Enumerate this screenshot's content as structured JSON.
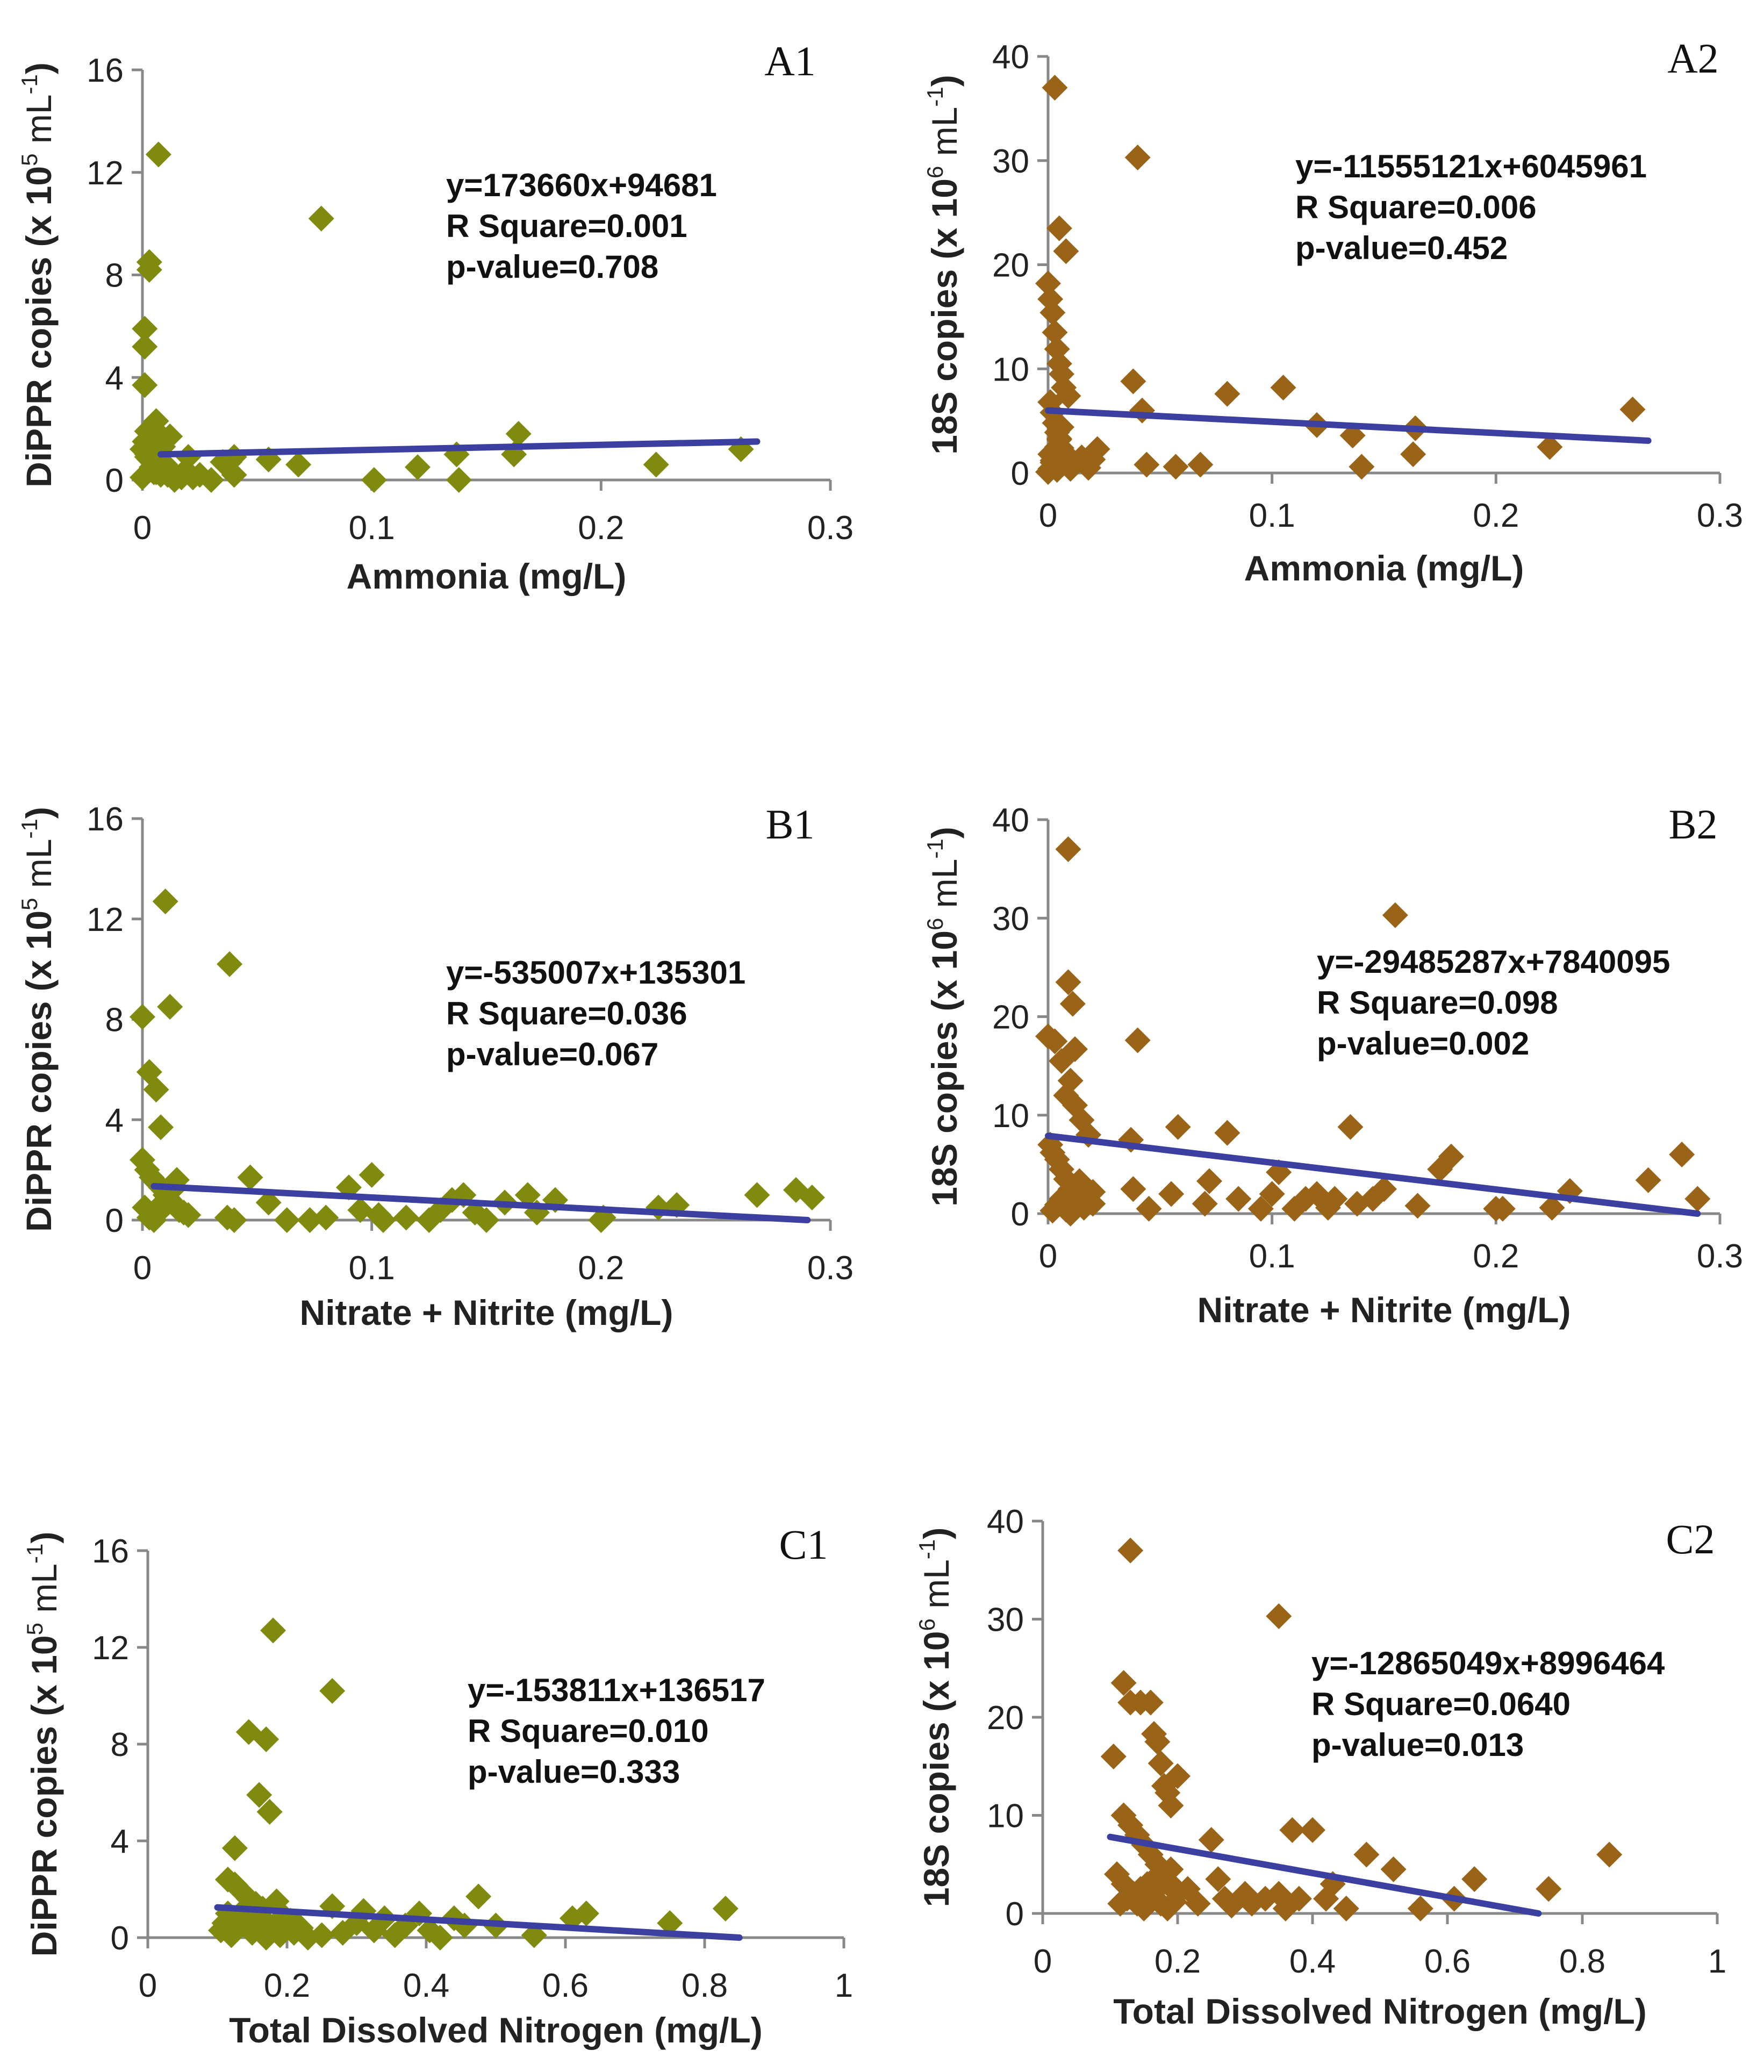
{
  "colors": {
    "series1": "#7f8a0e",
    "series2": "#9a6418",
    "trend": "#3a3fa0"
  },
  "chart_data": [
    {
      "type": "scatter",
      "panel": "A1",
      "xlabel": "Ammonia (mg/L)",
      "ylabel_parts": [
        "DiPPR copies (x 10",
        "5",
        " mL",
        "-1",
        ")"
      ],
      "xlim": [
        0,
        0.3
      ],
      "ylim": [
        0,
        16
      ],
      "xticks": [
        "0",
        "0.1",
        "0.2",
        "0.3"
      ],
      "yticks": [
        "0",
        "4",
        "8",
        "12",
        "16"
      ],
      "stats": [
        "y=173660x+94681",
        "R Square=0.001",
        "p-value=0.708"
      ],
      "trend": {
        "x": [
          0.008,
          0.268
        ],
        "y": [
          1.0,
          1.5
        ]
      },
      "x": [
        0.007,
        0.003,
        0.003,
        0.001,
        0.001,
        0.001,
        0.002,
        0.078,
        0.005,
        0.001,
        0.002,
        0.003,
        0.004,
        0.006,
        0.008,
        0.01,
        0.012,
        0.0,
        0.002,
        0.004,
        0.006,
        0.009,
        0.011,
        0.014,
        0.017,
        0.02,
        0.025,
        0.03,
        0.035,
        0.038,
        0.04,
        0.04,
        0.055,
        0.068,
        0.101,
        0.12,
        0.137,
        0.138,
        0.162,
        0.164,
        0.224,
        0.261,
        0.0,
        0.003,
        0.005,
        0.008,
        0.015,
        0.018,
        0.022
      ],
      "y": [
        12.7,
        8.5,
        8.2,
        5.9,
        5.2,
        3.7,
        1.9,
        10.2,
        2.0,
        1.5,
        1.0,
        0.8,
        0.5,
        0.3,
        0.2,
        0.6,
        1.7,
        0.1,
        0.9,
        0.4,
        2.3,
        1.3,
        0.2,
        0.0,
        0.1,
        0.9,
        0.2,
        0.0,
        0.7,
        0.7,
        0.2,
        0.9,
        0.8,
        0.6,
        0.0,
        0.5,
        1.0,
        0.0,
        1.0,
        1.8,
        0.6,
        1.2,
        1.2,
        1.5,
        0.3,
        0.4,
        0.1,
        0.3,
        0.1
      ]
    },
    {
      "type": "scatter",
      "panel": "A2",
      "xlabel": "Ammonia (mg/L)",
      "ylabel_parts": [
        "18S copies (x 10",
        "6",
        " mL",
        "-1",
        ")"
      ],
      "xlim": [
        0,
        0.3
      ],
      "ylim": [
        0,
        40
      ],
      "xticks": [
        "0",
        "0.1",
        "0.2",
        "0.3"
      ],
      "yticks": [
        "0",
        "10",
        "20",
        "30",
        "40"
      ],
      "stats": [
        "y=-11555121x+6045961",
        "R Square=0.006",
        "p-value=0.452"
      ],
      "trend": {
        "x": [
          0.0,
          0.268
        ],
        "y": [
          6.0,
          3.1
        ]
      },
      "x": [
        0.003,
        0.005,
        0.008,
        0.009,
        0.0,
        0.001,
        0.002,
        0.003,
        0.004,
        0.005,
        0.006,
        0.007,
        0.001,
        0.002,
        0.003,
        0.004,
        0.005,
        0.006,
        0.001,
        0.002,
        0.003,
        0.004,
        0.0,
        0.001,
        0.002,
        0.003,
        0.004,
        0.005,
        0.006,
        0.007,
        0.008,
        0.009,
        0.01,
        0.012,
        0.015,
        0.018,
        0.02,
        0.022,
        0.04,
        0.038,
        0.042,
        0.044,
        0.057,
        0.068,
        0.08,
        0.105,
        0.12,
        0.136,
        0.14,
        0.163,
        0.164,
        0.224,
        0.261
      ],
      "y": [
        37.0,
        23.5,
        21.3,
        7.4,
        18.2,
        16.7,
        15.4,
        13.5,
        11.9,
        10.5,
        9.5,
        8.2,
        6.8,
        5.8,
        4.8,
        3.9,
        3.2,
        2.4,
        1.8,
        1.2,
        0.7,
        0.3,
        0.1,
        0.4,
        1.0,
        1.6,
        2.5,
        3.3,
        4.4,
        1.1,
        1.8,
        0.7,
        0.4,
        0.9,
        1.5,
        0.5,
        1.3,
        2.3,
        30.3,
        8.8,
        6.0,
        0.8,
        0.6,
        0.8,
        7.6,
        8.2,
        4.6,
        3.6,
        0.6,
        1.8,
        4.3,
        2.5,
        6.1
      ]
    },
    {
      "type": "scatter",
      "panel": "B1",
      "xlabel": "Nitrate + Nitrite (mg/L)",
      "ylabel_parts": [
        "DiPPR copies (x 10",
        "5",
        " mL",
        "-1",
        ")"
      ],
      "xlim": [
        0,
        0.3
      ],
      "ylim": [
        0,
        16
      ],
      "xticks": [
        "0",
        "0.1",
        "0.2",
        "0.3"
      ],
      "yticks": [
        "0",
        "4",
        "8",
        "12",
        "16"
      ],
      "stats": [
        "y=-535007x+135301",
        "R Square=0.036",
        "p-value=0.067"
      ],
      "trend": {
        "x": [
          0.005,
          0.29
        ],
        "y": [
          1.35,
          0.0
        ]
      },
      "x": [
        0.01,
        0.012,
        0.038,
        0.0,
        0.003,
        0.006,
        0.008,
        0.0,
        0.002,
        0.004,
        0.006,
        0.008,
        0.01,
        0.012,
        0.014,
        0.016,
        0.018,
        0.02,
        0.001,
        0.003,
        0.005,
        0.007,
        0.009,
        0.011,
        0.013,
        0.015,
        0.037,
        0.04,
        0.047,
        0.055,
        0.063,
        0.073,
        0.08,
        0.09,
        0.095,
        0.1,
        0.103,
        0.105,
        0.115,
        0.125,
        0.13,
        0.135,
        0.14,
        0.145,
        0.15,
        0.158,
        0.168,
        0.172,
        0.18,
        0.2,
        0.201,
        0.225,
        0.233,
        0.268,
        0.285,
        0.292
      ],
      "y": [
        12.7,
        8.5,
        10.2,
        8.1,
        5.9,
        5.2,
        3.7,
        2.4,
        2.0,
        1.7,
        1.5,
        1.3,
        1.0,
        0.8,
        0.6,
        0.4,
        0.3,
        0.2,
        0.5,
        0.1,
        0.0,
        0.3,
        0.7,
        0.9,
        1.2,
        1.6,
        0.1,
        0.0,
        1.7,
        0.7,
        0.0,
        0.0,
        0.1,
        1.3,
        0.4,
        1.8,
        0.2,
        0.0,
        0.1,
        0.0,
        0.4,
        0.8,
        1.0,
        0.3,
        0.0,
        0.7,
        1.0,
        0.3,
        0.8,
        0.0,
        0.1,
        0.5,
        0.6,
        1.0,
        1.2,
        0.9
      ]
    },
    {
      "type": "scatter",
      "panel": "B2",
      "xlabel": "Nitrate + Nitrite (mg/L)",
      "ylabel_parts": [
        "18S copies (x 10",
        "6",
        " mL",
        "-1",
        ")"
      ],
      "xlim": [
        0,
        0.3
      ],
      "ylim": [
        0,
        40
      ],
      "xticks": [
        "0",
        "0.1",
        "0.2",
        "0.3"
      ],
      "yticks": [
        "0",
        "10",
        "20",
        "30",
        "40"
      ],
      "stats": [
        "y=-29485287x+7840095",
        "R Square=0.098",
        "p-value=0.002"
      ],
      "trend": {
        "x": [
          0.0,
          0.29
        ],
        "y": [
          7.9,
          0.0
        ]
      },
      "x": [
        0.009,
        0.009,
        0.011,
        0.012,
        0.0,
        0.003,
        0.006,
        0.008,
        0.01,
        0.012,
        0.015,
        0.018,
        0.001,
        0.002,
        0.004,
        0.006,
        0.008,
        0.01,
        0.012,
        0.014,
        0.016,
        0.018,
        0.02,
        0.002,
        0.004,
        0.006,
        0.008,
        0.01,
        0.012,
        0.014,
        0.02,
        0.04,
        0.037,
        0.038,
        0.045,
        0.055,
        0.058,
        0.07,
        0.072,
        0.08,
        0.085,
        0.095,
        0.1,
        0.103,
        0.11,
        0.115,
        0.12,
        0.125,
        0.128,
        0.135,
        0.138,
        0.145,
        0.15,
        0.155,
        0.165,
        0.175,
        0.18,
        0.2,
        0.203,
        0.225,
        0.233,
        0.268,
        0.283,
        0.29
      ],
      "y": [
        37.0,
        23.5,
        21.3,
        16.7,
        18.0,
        17.5,
        15.5,
        12.0,
        13.5,
        11.0,
        9.5,
        8.0,
        7.0,
        6.2,
        5.5,
        4.5,
        3.5,
        2.5,
        1.8,
        1.2,
        0.6,
        2.0,
        1.0,
        0.3,
        0.9,
        1.5,
        0.4,
        0.0,
        2.8,
        3.3,
        2.2,
        17.6,
        7.5,
        2.5,
        0.5,
        2.0,
        8.8,
        1.0,
        3.3,
        8.2,
        1.5,
        0.5,
        2.0,
        4.2,
        0.5,
        1.5,
        2.0,
        0.6,
        1.5,
        8.8,
        1.0,
        1.5,
        2.5,
        30.3,
        0.8,
        4.5,
        5.8,
        0.5,
        0.5,
        0.6,
        2.3,
        3.4,
        6.0,
        1.5
      ]
    },
    {
      "type": "scatter",
      "panel": "C1",
      "xlabel": "Total Dissolved Nitrogen (mg/L)",
      "ylabel_parts": [
        "DiPPR copies (x 10",
        "5",
        " mL",
        "-1",
        ")"
      ],
      "xlim": [
        0,
        1
      ],
      "ylim": [
        0,
        16
      ],
      "xticks": [
        "0",
        "0.2",
        "0.4",
        "0.6",
        "0.8",
        "1"
      ],
      "yticks": [
        "0",
        "4",
        "8",
        "12",
        "16"
      ],
      "stats": [
        "y=-153811x+136517",
        "R Square=0.010",
        "p-value=0.333"
      ],
      "trend": {
        "x": [
          0.1,
          0.85
        ],
        "y": [
          1.25,
          0.0
        ]
      },
      "x": [
        0.18,
        0.265,
        0.145,
        0.17,
        0.16,
        0.175,
        0.125,
        0.115,
        0.125,
        0.135,
        0.145,
        0.155,
        0.165,
        0.185,
        0.195,
        0.205,
        0.215,
        0.105,
        0.11,
        0.12,
        0.13,
        0.14,
        0.15,
        0.16,
        0.17,
        0.18,
        0.19,
        0.2,
        0.21,
        0.22,
        0.23,
        0.115,
        0.14,
        0.165,
        0.19,
        0.25,
        0.265,
        0.28,
        0.3,
        0.31,
        0.325,
        0.34,
        0.355,
        0.37,
        0.39,
        0.405,
        0.42,
        0.44,
        0.455,
        0.475,
        0.5,
        0.555,
        0.61,
        0.63,
        0.75,
        0.83
      ],
      "y": [
        12.7,
        10.2,
        8.5,
        8.2,
        5.9,
        5.2,
        3.7,
        2.4,
        2.2,
        1.9,
        1.6,
        1.4,
        1.2,
        1.5,
        0.9,
        0.7,
        0.5,
        0.3,
        0.6,
        0.1,
        0.4,
        0.8,
        0.2,
        0.5,
        0.0,
        0.3,
        0.1,
        0.6,
        0.2,
        0.4,
        0.0,
        1.0,
        1.2,
        0.8,
        0.3,
        0.1,
        1.3,
        0.2,
        0.6,
        1.1,
        0.3,
        0.8,
        0.1,
        0.5,
        1.0,
        0.3,
        0.0,
        0.8,
        0.5,
        1.7,
        0.5,
        0.1,
        0.8,
        1.0,
        0.6,
        1.2
      ]
    },
    {
      "type": "scatter",
      "panel": "C2",
      "xlabel": "Total Dissolved Nitrogen (mg/L)",
      "ylabel_parts": [
        "18S copies (x 10",
        "6",
        " mL",
        "-1",
        ")"
      ],
      "xlim": [
        0,
        1
      ],
      "ylim": [
        0,
        40
      ],
      "xticks": [
        "0",
        "0.2",
        "0.4",
        "0.6",
        "0.8",
        "1"
      ],
      "yticks": [
        "0",
        "10",
        "20",
        "30",
        "40"
      ],
      "stats": [
        "y=-12865049x+8996464",
        "R Square=0.0640",
        "p-value=0.013"
      ],
      "trend": {
        "x": [
          0.1,
          0.735
        ],
        "y": [
          7.8,
          0.0
        ]
      },
      "x": [
        0.13,
        0.35,
        0.105,
        0.12,
        0.13,
        0.145,
        0.16,
        0.175,
        0.165,
        0.17,
        0.18,
        0.185,
        0.19,
        0.2,
        0.12,
        0.13,
        0.14,
        0.15,
        0.16,
        0.17,
        0.18,
        0.19,
        0.2,
        0.11,
        0.12,
        0.13,
        0.14,
        0.15,
        0.16,
        0.17,
        0.18,
        0.19,
        0.115,
        0.125,
        0.135,
        0.145,
        0.155,
        0.165,
        0.175,
        0.185,
        0.195,
        0.215,
        0.23,
        0.25,
        0.26,
        0.27,
        0.28,
        0.3,
        0.31,
        0.33,
        0.35,
        0.36,
        0.37,
        0.38,
        0.4,
        0.42,
        0.43,
        0.45,
        0.48,
        0.52,
        0.56,
        0.61,
        0.64,
        0.75,
        0.84
      ],
      "y": [
        37.0,
        30.3,
        16.0,
        23.5,
        21.5,
        21.5,
        21.5,
        15.3,
        18.3,
        17.5,
        13.0,
        12.3,
        11.0,
        14.0,
        10.0,
        9.0,
        8.0,
        7.0,
        6.0,
        5.0,
        4.0,
        3.0,
        2.0,
        4.0,
        3.0,
        2.0,
        1.0,
        0.5,
        1.5,
        2.5,
        3.5,
        4.5,
        1.0,
        1.5,
        2.0,
        2.5,
        3.0,
        3.5,
        1.0,
        0.5,
        1.2,
        2.5,
        1.0,
        7.5,
        3.5,
        1.5,
        0.8,
        2.0,
        1.0,
        1.5,
        2.0,
        0.5,
        8.5,
        1.5,
        8.5,
        1.5,
        3.0,
        0.5,
        6.0,
        4.5,
        0.5,
        1.5,
        3.5,
        2.5,
        6.0
      ]
    }
  ]
}
